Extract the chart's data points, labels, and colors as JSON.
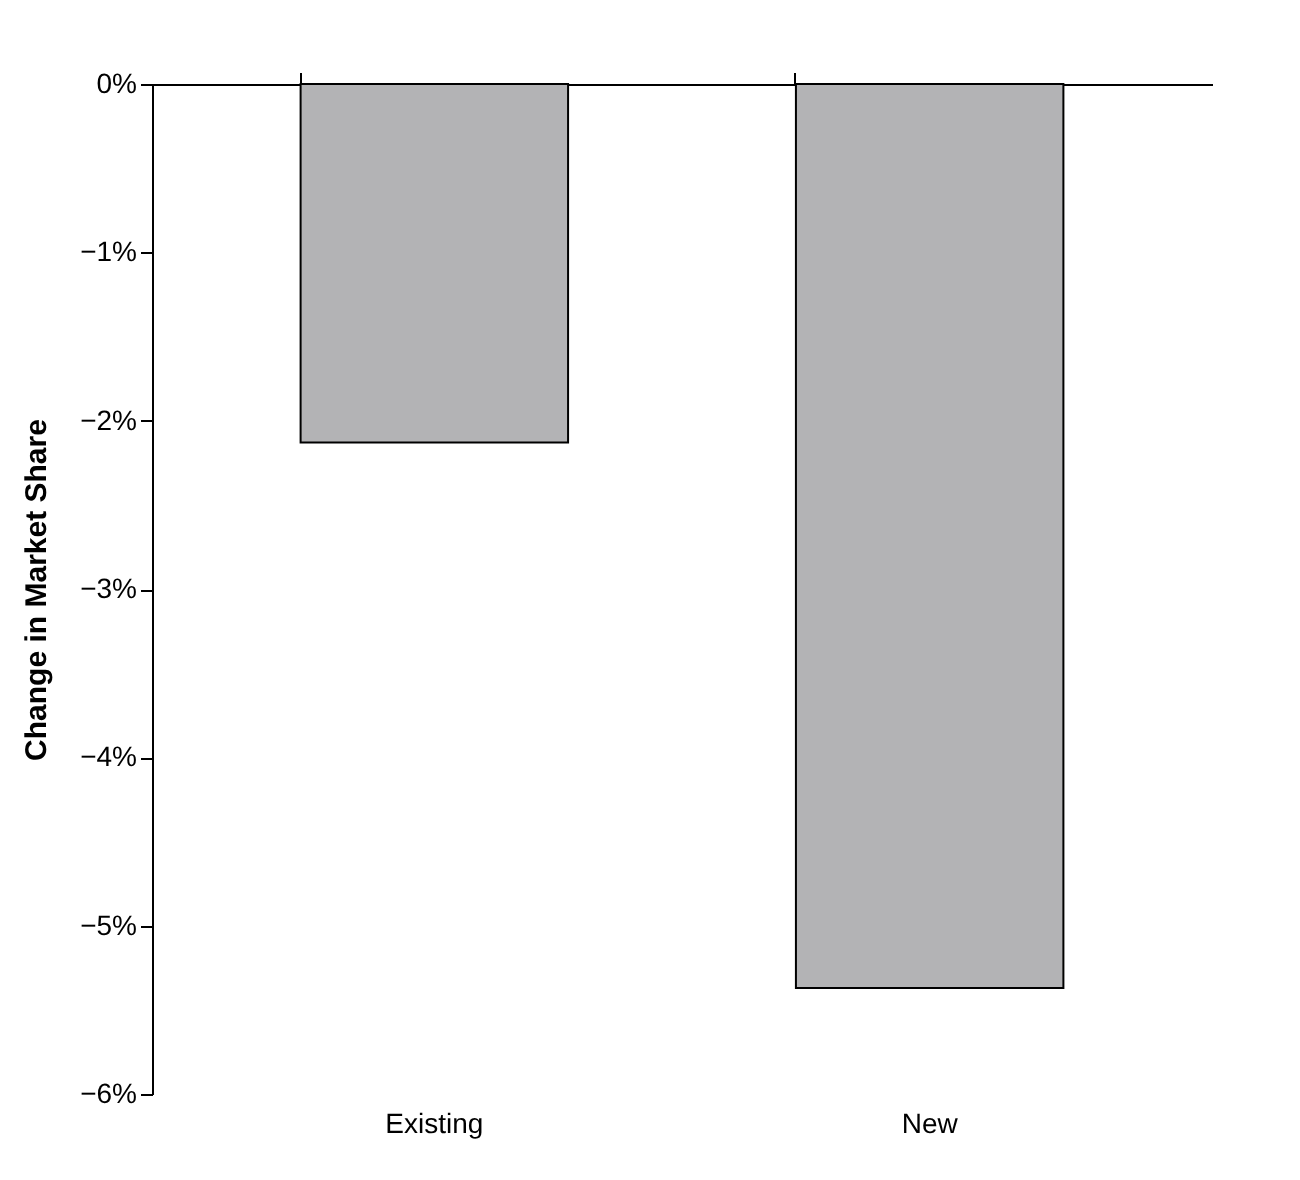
{
  "chart_data": {
    "type": "bar",
    "ylabel": "Change in Market Share",
    "categories": [
      "Existing",
      "New"
    ],
    "values": [
      -2.13,
      -5.37
    ],
    "color": "#b3b3b5",
    "ylim": [
      -6,
      0
    ],
    "yticks": [
      {
        "value": -6,
        "label": "−6%"
      },
      {
        "value": -5,
        "label": "−5%"
      },
      {
        "value": -4,
        "label": "−4%"
      },
      {
        "value": -3,
        "label": "−3%"
      },
      {
        "value": -2,
        "label": "−2%"
      },
      {
        "value": -1,
        "label": "−1%"
      },
      {
        "value": 0,
        "label": "0%"
      }
    ],
    "grid": false
  }
}
